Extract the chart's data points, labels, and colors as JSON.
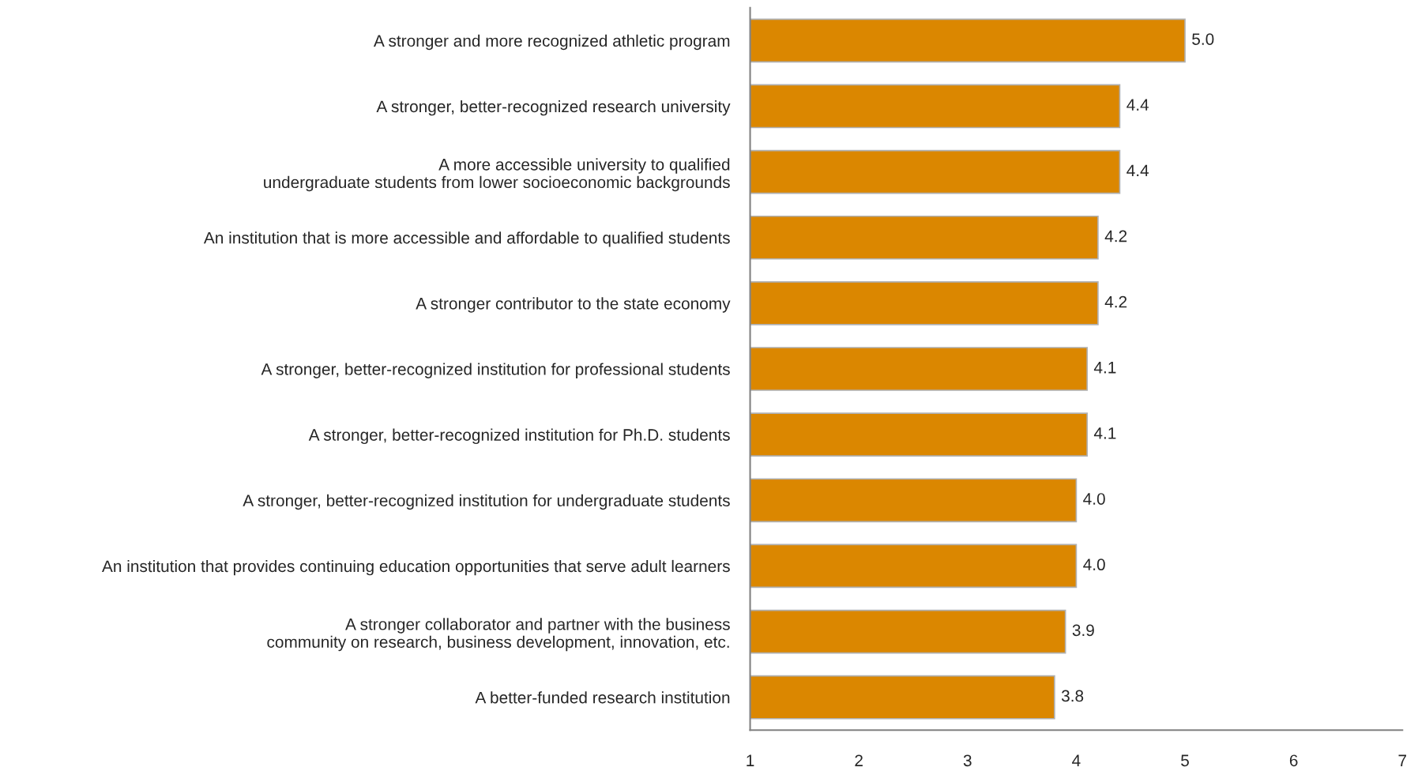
{
  "chart_data": {
    "type": "bar",
    "orientation": "horizontal",
    "categories": [
      "A stronger and more recognized athletic program",
      "A stronger, better-recognized research university",
      "A more accessible university to qualified\nundergraduate students from lower socioeconomic backgrounds",
      "An institution that is more accessible and affordable to qualified students",
      "A stronger contributor to the state economy",
      "A stronger, better-recognized institution for professional students",
      "A stronger, better-recognized institution for Ph.D. students",
      "A stronger, better-recognized institution for undergraduate students",
      "An institution that provides continuing education opportunities that serve adult learners",
      "A stronger collaborator and partner with the business\ncommunity on research, business development, innovation, etc.",
      "A better-funded research institution"
    ],
    "values": [
      5.0,
      4.4,
      4.4,
      4.2,
      4.2,
      4.1,
      4.1,
      4.0,
      4.0,
      3.9,
      3.8
    ],
    "color": "#db8700",
    "xlim": [
      1,
      7
    ],
    "xticks": [
      1,
      2,
      3,
      4,
      5,
      6,
      7
    ],
    "value_labels": [
      "5.0",
      "4.4",
      "4.4",
      "4.2",
      "4.2",
      "4.1",
      "4.1",
      "4.0",
      "4.0",
      "3.9",
      "3.8"
    ],
    "grid": false,
    "legend": false
  }
}
